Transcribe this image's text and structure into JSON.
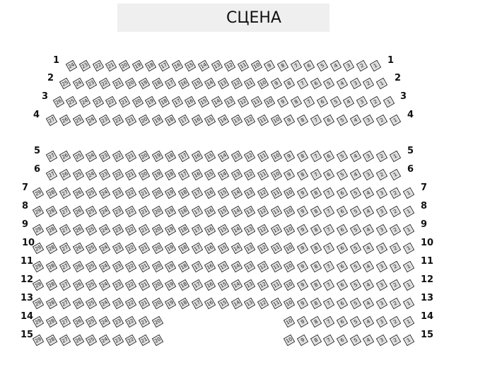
{
  "stage": {
    "label": "СЦЕНА"
  },
  "rows": [
    {
      "label": "1",
      "seats": [
        24,
        23,
        22,
        21,
        20,
        19,
        18,
        17,
        16,
        15,
        14,
        13,
        12,
        11,
        10,
        9,
        8,
        7,
        6,
        5,
        4,
        3,
        2,
        1
      ]
    },
    {
      "label": "2",
      "seats": [
        25,
        24,
        23,
        22,
        21,
        20,
        19,
        18,
        17,
        16,
        15,
        14,
        13,
        12,
        11,
        10,
        9,
        8,
        7,
        6,
        5,
        4,
        3,
        2,
        1
      ]
    },
    {
      "label": "3",
      "seats": [
        26,
        25,
        24,
        23,
        22,
        21,
        20,
        19,
        18,
        17,
        16,
        15,
        14,
        13,
        12,
        11,
        10,
        9,
        8,
        7,
        6,
        5,
        4,
        3,
        2,
        1
      ]
    },
    {
      "label": "4",
      "seats": [
        27,
        26,
        25,
        24,
        23,
        22,
        21,
        20,
        19,
        18,
        17,
        16,
        15,
        14,
        13,
        12,
        11,
        10,
        9,
        8,
        7,
        6,
        5,
        4,
        3,
        2,
        1
      ]
    },
    {
      "label": "5",
      "seats": [
        27,
        26,
        25,
        24,
        23,
        22,
        21,
        20,
        19,
        18,
        17,
        16,
        15,
        14,
        13,
        12,
        11,
        10,
        9,
        8,
        7,
        6,
        5,
        4,
        3,
        2,
        1
      ]
    },
    {
      "label": "6",
      "seats": [
        27,
        26,
        25,
        24,
        23,
        22,
        21,
        20,
        19,
        18,
        17,
        16,
        15,
        14,
        13,
        12,
        11,
        10,
        9,
        8,
        7,
        6,
        5,
        4,
        3,
        2,
        1
      ]
    },
    {
      "label": "7",
      "seats": [
        29,
        28,
        27,
        26,
        25,
        24,
        23,
        22,
        21,
        20,
        19,
        18,
        17,
        16,
        15,
        14,
        13,
        12,
        11,
        10,
        9,
        8,
        7,
        6,
        5,
        4,
        3,
        2,
        1
      ]
    },
    {
      "label": "8",
      "seats": [
        29,
        28,
        27,
        26,
        25,
        24,
        23,
        22,
        21,
        20,
        19,
        18,
        17,
        16,
        15,
        14,
        13,
        12,
        11,
        10,
        9,
        8,
        7,
        6,
        5,
        4,
        3,
        2,
        1
      ]
    },
    {
      "label": "9",
      "seats": [
        29,
        28,
        27,
        26,
        25,
        24,
        23,
        22,
        21,
        20,
        19,
        18,
        17,
        16,
        15,
        14,
        13,
        12,
        11,
        10,
        9,
        8,
        7,
        6,
        5,
        4,
        3,
        2,
        1
      ]
    },
    {
      "label": "10",
      "seats": [
        29,
        28,
        27,
        26,
        25,
        24,
        23,
        22,
        21,
        20,
        19,
        18,
        17,
        16,
        15,
        14,
        13,
        12,
        11,
        10,
        9,
        8,
        7,
        6,
        5,
        4,
        3,
        2,
        1
      ]
    },
    {
      "label": "11",
      "seats": [
        29,
        28,
        27,
        26,
        25,
        24,
        23,
        22,
        21,
        20,
        19,
        18,
        17,
        16,
        15,
        14,
        13,
        12,
        11,
        10,
        9,
        8,
        7,
        6,
        5,
        4,
        3,
        2,
        1
      ]
    },
    {
      "label": "12",
      "seats": [
        29,
        28,
        27,
        26,
        25,
        24,
        23,
        22,
        21,
        20,
        19,
        18,
        17,
        16,
        15,
        14,
        13,
        12,
        11,
        10,
        9,
        8,
        7,
        6,
        5,
        4,
        3,
        2,
        1
      ]
    },
    {
      "label": "13",
      "seats": [
        29,
        28,
        27,
        26,
        25,
        24,
        23,
        22,
        21,
        20,
        19,
        18,
        17,
        16,
        15,
        14,
        13,
        12,
        11,
        10,
        9,
        8,
        7,
        6,
        5,
        4,
        3,
        2,
        1
      ]
    },
    {
      "label": "14",
      "seats": [
        29,
        28,
        27,
        26,
        25,
        24,
        23,
        22,
        21,
        20,
        10,
        9,
        8,
        7,
        6,
        5,
        4,
        3,
        2,
        1
      ]
    },
    {
      "label": "15",
      "seats": [
        29,
        28,
        27,
        26,
        25,
        24,
        23,
        22,
        21,
        20,
        10,
        9,
        8,
        7,
        6,
        5,
        4,
        3,
        2,
        1
      ]
    }
  ],
  "colors": {
    "seat_fill": "#d8d8d8",
    "seat_border": "#333333",
    "stage_bg": "#efefef"
  }
}
